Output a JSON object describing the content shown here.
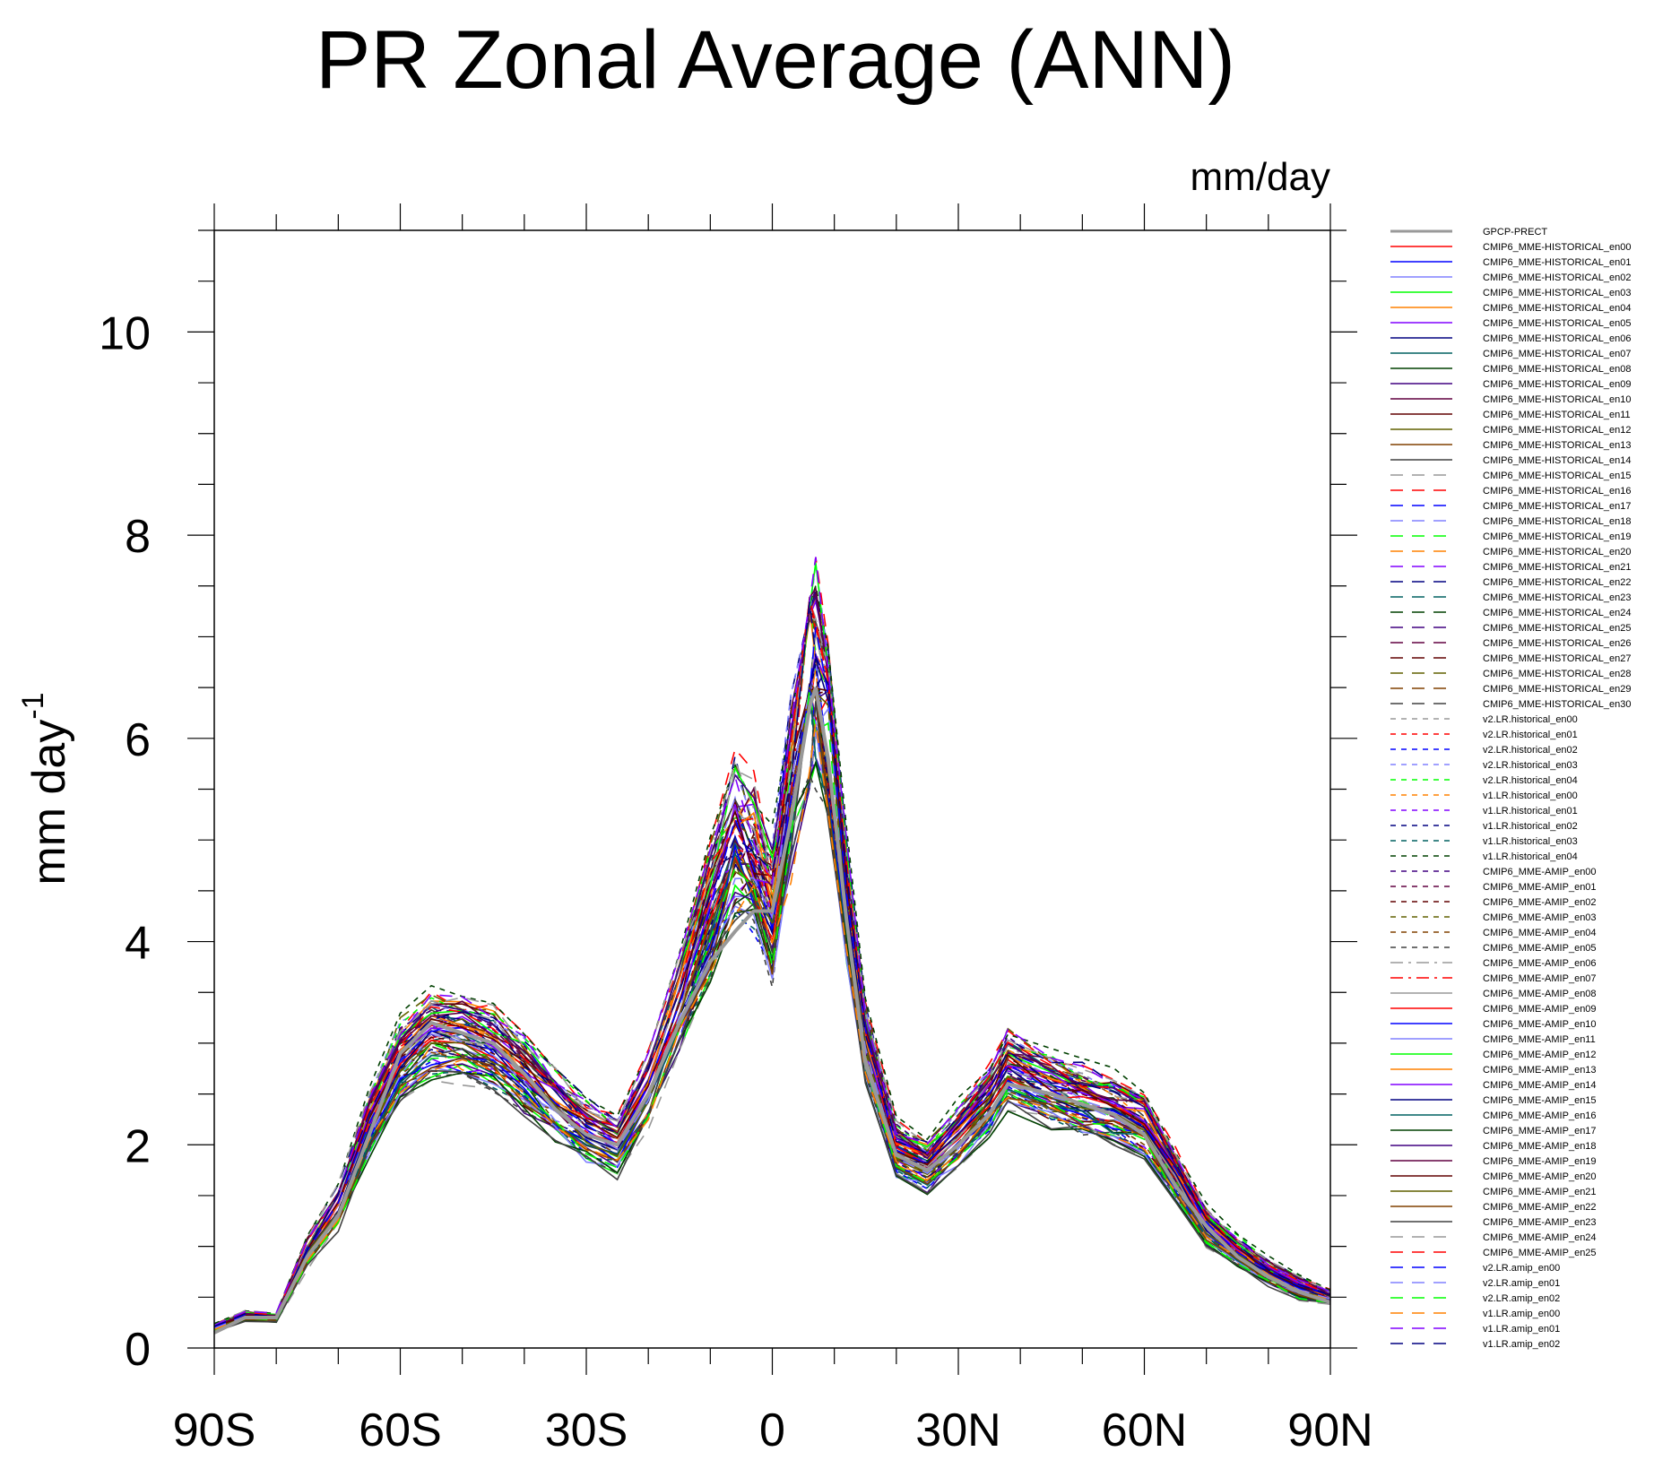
{
  "chart_data": {
    "type": "line",
    "title": "PR Zonal Average (ANN)",
    "units_label": "mm/day",
    "ylabel": "mm day",
    "ylabel_sup": "-1",
    "xlim": [
      -90,
      90
    ],
    "ylim": [
      0,
      11
    ],
    "x_ticks": [
      -90,
      -60,
      -30,
      0,
      30,
      60,
      90
    ],
    "x_tick_labels": [
      "90S",
      "60S",
      "30S",
      "0",
      "30N",
      "60N",
      "90N"
    ],
    "y_ticks": [
      0,
      2,
      4,
      6,
      8,
      10
    ],
    "y_tick_labels": [
      "0",
      "2",
      "4",
      "6",
      "8",
      "10"
    ],
    "x": [
      -90,
      -85,
      -80,
      -75,
      -70,
      -65,
      -60,
      -55,
      -50,
      -45,
      -40,
      -35,
      -30,
      -25,
      -20,
      -15,
      -10,
      -6,
      -3,
      0,
      3,
      6,
      7,
      9,
      12,
      15,
      20,
      25,
      30,
      35,
      38,
      45,
      50,
      55,
      60,
      65,
      70,
      75,
      80,
      85,
      90
    ],
    "reference": {
      "name": "GPCP-PRECT",
      "values": [
        0.15,
        0.3,
        0.3,
        0.9,
        1.3,
        2.1,
        2.9,
        3.2,
        3.1,
        3.0,
        2.7,
        2.35,
        2.1,
        2.0,
        2.5,
        3.2,
        3.8,
        4.1,
        4.3,
        4.3,
        5.2,
        6.3,
        6.5,
        5.8,
        4.2,
        2.8,
        1.9,
        1.75,
        2.0,
        2.3,
        2.6,
        2.5,
        2.4,
        2.3,
        2.1,
        1.6,
        1.2,
        0.9,
        0.7,
        0.55,
        0.45
      ]
    },
    "ensemble_mean": [
      0.2,
      0.32,
      0.3,
      0.95,
      1.4,
      2.2,
      2.85,
      3.1,
      3.05,
      2.95,
      2.7,
      2.4,
      2.15,
      2.0,
      2.55,
      3.4,
      4.3,
      5.0,
      4.8,
      4.3,
      5.5,
      6.6,
      6.7,
      6.2,
      4.4,
      3.0,
      1.95,
      1.8,
      2.1,
      2.45,
      2.75,
      2.55,
      2.45,
      2.35,
      2.2,
      1.7,
      1.2,
      0.95,
      0.75,
      0.6,
      0.5
    ],
    "series": [
      {
        "name": "CMIP6_MME-HISTORICAL_en00",
        "color": "#ff0000",
        "dash": "solid"
      },
      {
        "name": "CMIP6_MME-HISTORICAL_en01",
        "color": "#0000ff",
        "dash": "solid"
      },
      {
        "name": "CMIP6_MME-HISTORICAL_en02",
        "color": "#8080ff",
        "dash": "solid"
      },
      {
        "name": "CMIP6_MME-HISTORICAL_en03",
        "color": "#00ff00",
        "dash": "solid"
      },
      {
        "name": "CMIP6_MME-HISTORICAL_en04",
        "color": "#ff8000",
        "dash": "solid"
      },
      {
        "name": "CMIP6_MME-HISTORICAL_en05",
        "color": "#8000ff",
        "dash": "solid"
      },
      {
        "name": "CMIP6_MME-HISTORICAL_en06",
        "color": "#000080",
        "dash": "solid"
      },
      {
        "name": "CMIP6_MME-HISTORICAL_en07",
        "color": "#006060",
        "dash": "solid"
      },
      {
        "name": "CMIP6_MME-HISTORICAL_en08",
        "color": "#004000",
        "dash": "solid"
      },
      {
        "name": "CMIP6_MME-HISTORICAL_en09",
        "color": "#400080",
        "dash": "solid"
      },
      {
        "name": "CMIP6_MME-HISTORICAL_en10",
        "color": "#600040",
        "dash": "solid"
      },
      {
        "name": "CMIP6_MME-HISTORICAL_en11",
        "color": "#600000",
        "dash": "solid"
      },
      {
        "name": "CMIP6_MME-HISTORICAL_en12",
        "color": "#606000",
        "dash": "solid"
      },
      {
        "name": "CMIP6_MME-HISTORICAL_en13",
        "color": "#804000",
        "dash": "solid"
      },
      {
        "name": "CMIP6_MME-HISTORICAL_en14",
        "color": "#404040",
        "dash": "solid"
      },
      {
        "name": "CMIP6_MME-HISTORICAL_en15",
        "color": "#999999",
        "dash": "long"
      },
      {
        "name": "CMIP6_MME-HISTORICAL_en16",
        "color": "#ff0000",
        "dash": "long"
      },
      {
        "name": "CMIP6_MME-HISTORICAL_en17",
        "color": "#0000ff",
        "dash": "long"
      },
      {
        "name": "CMIP6_MME-HISTORICAL_en18",
        "color": "#8080ff",
        "dash": "long"
      },
      {
        "name": "CMIP6_MME-HISTORICAL_en19",
        "color": "#00ff00",
        "dash": "long"
      },
      {
        "name": "CMIP6_MME-HISTORICAL_en20",
        "color": "#ff8000",
        "dash": "long"
      },
      {
        "name": "CMIP6_MME-HISTORICAL_en21",
        "color": "#8000ff",
        "dash": "long"
      },
      {
        "name": "CMIP6_MME-HISTORICAL_en22",
        "color": "#000080",
        "dash": "long"
      },
      {
        "name": "CMIP6_MME-HISTORICAL_en23",
        "color": "#006060",
        "dash": "long"
      },
      {
        "name": "CMIP6_MME-HISTORICAL_en24",
        "color": "#004000",
        "dash": "long"
      },
      {
        "name": "CMIP6_MME-HISTORICAL_en25",
        "color": "#400080",
        "dash": "long"
      },
      {
        "name": "CMIP6_MME-HISTORICAL_en26",
        "color": "#600040",
        "dash": "long"
      },
      {
        "name": "CMIP6_MME-HISTORICAL_en27",
        "color": "#600000",
        "dash": "long"
      },
      {
        "name": "CMIP6_MME-HISTORICAL_en28",
        "color": "#606000",
        "dash": "long"
      },
      {
        "name": "CMIP6_MME-HISTORICAL_en29",
        "color": "#804000",
        "dash": "long"
      },
      {
        "name": "CMIP6_MME-HISTORICAL_en30",
        "color": "#404040",
        "dash": "long"
      },
      {
        "name": "v2.LR.historical_en00",
        "color": "#999999",
        "dash": "short"
      },
      {
        "name": "v2.LR.historical_en01",
        "color": "#ff0000",
        "dash": "short"
      },
      {
        "name": "v2.LR.historical_en02",
        "color": "#0000ff",
        "dash": "short"
      },
      {
        "name": "v2.LR.historical_en03",
        "color": "#8080ff",
        "dash": "short"
      },
      {
        "name": "v2.LR.historical_en04",
        "color": "#00ff00",
        "dash": "short"
      },
      {
        "name": "v1.LR.historical_en00",
        "color": "#ff8000",
        "dash": "short"
      },
      {
        "name": "v1.LR.historical_en01",
        "color": "#8000ff",
        "dash": "short"
      },
      {
        "name": "v1.LR.historical_en02",
        "color": "#000080",
        "dash": "short"
      },
      {
        "name": "v1.LR.historical_en03",
        "color": "#006060",
        "dash": "short"
      },
      {
        "name": "v1.LR.historical_en04",
        "color": "#004000",
        "dash": "short"
      },
      {
        "name": "CMIP6_MME-AMIP_en00",
        "color": "#400080",
        "dash": "short"
      },
      {
        "name": "CMIP6_MME-AMIP_en01",
        "color": "#600040",
        "dash": "short"
      },
      {
        "name": "CMIP6_MME-AMIP_en02",
        "color": "#600000",
        "dash": "short"
      },
      {
        "name": "CMIP6_MME-AMIP_en03",
        "color": "#606000",
        "dash": "short"
      },
      {
        "name": "CMIP6_MME-AMIP_en04",
        "color": "#804000",
        "dash": "short"
      },
      {
        "name": "CMIP6_MME-AMIP_en05",
        "color": "#404040",
        "dash": "short"
      },
      {
        "name": "CMIP6_MME-AMIP_en06",
        "color": "#999999",
        "dash": "dashdot"
      },
      {
        "name": "CMIP6_MME-AMIP_en07",
        "color": "#ff0000",
        "dash": "dashdot"
      },
      {
        "name": "CMIP6_MME-AMIP_en08",
        "color": "#999999",
        "dash": "solid"
      },
      {
        "name": "CMIP6_MME-AMIP_en09",
        "color": "#ff0000",
        "dash": "solid"
      },
      {
        "name": "CMIP6_MME-AMIP_en10",
        "color": "#0000ff",
        "dash": "solid"
      },
      {
        "name": "CMIP6_MME-AMIP_en11",
        "color": "#8080ff",
        "dash": "solid"
      },
      {
        "name": "CMIP6_MME-AMIP_en12",
        "color": "#00ff00",
        "dash": "solid"
      },
      {
        "name": "CMIP6_MME-AMIP_en13",
        "color": "#ff8000",
        "dash": "solid"
      },
      {
        "name": "CMIP6_MME-AMIP_en14",
        "color": "#8000ff",
        "dash": "solid"
      },
      {
        "name": "CMIP6_MME-AMIP_en15",
        "color": "#000080",
        "dash": "solid"
      },
      {
        "name": "CMIP6_MME-AMIP_en16",
        "color": "#006060",
        "dash": "solid"
      },
      {
        "name": "CMIP6_MME-AMIP_en17",
        "color": "#004000",
        "dash": "solid"
      },
      {
        "name": "CMIP6_MME-AMIP_en18",
        "color": "#400080",
        "dash": "solid"
      },
      {
        "name": "CMIP6_MME-AMIP_en19",
        "color": "#600040",
        "dash": "solid"
      },
      {
        "name": "CMIP6_MME-AMIP_en20",
        "color": "#600000",
        "dash": "solid"
      },
      {
        "name": "CMIP6_MME-AMIP_en21",
        "color": "#606000",
        "dash": "solid"
      },
      {
        "name": "CMIP6_MME-AMIP_en22",
        "color": "#804000",
        "dash": "solid"
      },
      {
        "name": "CMIP6_MME-AMIP_en23",
        "color": "#404040",
        "dash": "solid"
      },
      {
        "name": "CMIP6_MME-AMIP_en24",
        "color": "#999999",
        "dash": "long"
      },
      {
        "name": "CMIP6_MME-AMIP_en25",
        "color": "#ff0000",
        "dash": "long"
      },
      {
        "name": "v2.LR.amip_en00",
        "color": "#0000ff",
        "dash": "long"
      },
      {
        "name": "v2.LR.amip_en01",
        "color": "#8080ff",
        "dash": "long"
      },
      {
        "name": "v2.LR.amip_en02",
        "color": "#00ff00",
        "dash": "long"
      },
      {
        "name": "v1.LR.amip_en00",
        "color": "#ff8000",
        "dash": "long"
      },
      {
        "name": "v1.LR.amip_en01",
        "color": "#8000ff",
        "dash": "long"
      },
      {
        "name": "v1.LR.amip_en02",
        "color": "#000080",
        "dash": "long"
      }
    ]
  }
}
